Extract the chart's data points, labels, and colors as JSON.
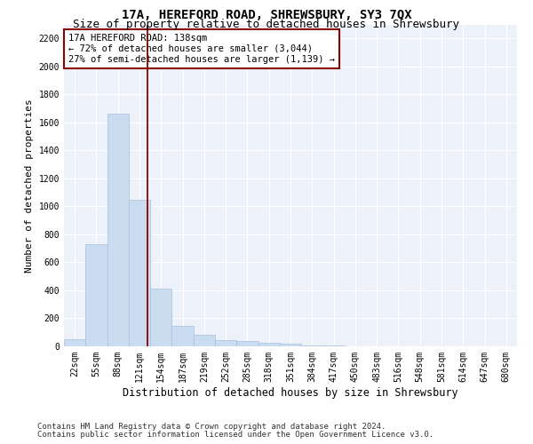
{
  "title": "17A, HEREFORD ROAD, SHREWSBURY, SY3 7QX",
  "subtitle": "Size of property relative to detached houses in Shrewsbury",
  "xlabel": "Distribution of detached houses by size in Shrewsbury",
  "ylabel": "Number of detached properties",
  "categories": [
    "22sqm",
    "55sqm",
    "88sqm",
    "121sqm",
    "154sqm",
    "187sqm",
    "219sqm",
    "252sqm",
    "285sqm",
    "318sqm",
    "351sqm",
    "384sqm",
    "417sqm",
    "450sqm",
    "483sqm",
    "516sqm",
    "548sqm",
    "581sqm",
    "614sqm",
    "647sqm",
    "680sqm"
  ],
  "values": [
    50,
    730,
    1660,
    1050,
    410,
    145,
    80,
    45,
    35,
    25,
    20,
    5,
    5,
    0,
    0,
    0,
    0,
    0,
    0,
    0,
    0
  ],
  "bar_color": "#c9dcf0",
  "bar_edgecolor": "#a8c0de",
  "vline_x": 3.38,
  "vline_color": "#8b0000",
  "annotation_text": "17A HEREFORD ROAD: 138sqm\n← 72% of detached houses are smaller (3,044)\n27% of semi-detached houses are larger (1,139) →",
  "annotation_box_color": "#8b0000",
  "ylim": [
    0,
    2300
  ],
  "yticks": [
    0,
    200,
    400,
    600,
    800,
    1000,
    1200,
    1400,
    1600,
    1800,
    2000,
    2200
  ],
  "background_color": "#edf2fa",
  "footer_line1": "Contains HM Land Registry data © Crown copyright and database right 2024.",
  "footer_line2": "Contains public sector information licensed under the Open Government Licence v3.0.",
  "title_fontsize": 10,
  "subtitle_fontsize": 9,
  "xlabel_fontsize": 8.5,
  "ylabel_fontsize": 8,
  "tick_fontsize": 7,
  "annotation_fontsize": 7.5,
  "footer_fontsize": 6.5
}
